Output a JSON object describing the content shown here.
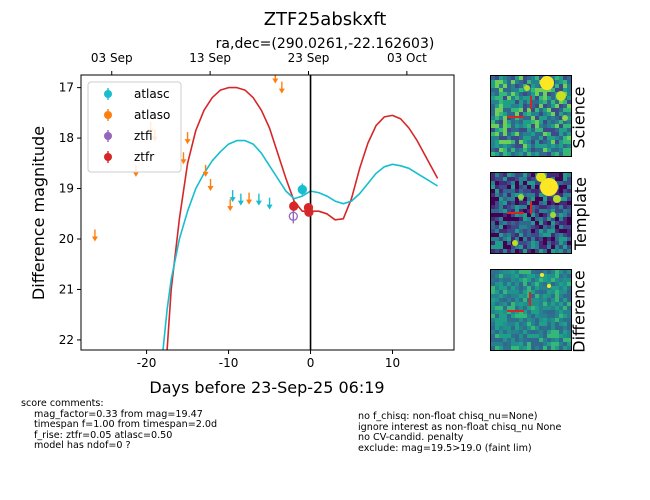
{
  "chart_data": {
    "type": "scatter",
    "title": "ZTF25abskxft",
    "subtitle": "ra,dec=(290.0261,-22.162603)",
    "xlabel": "Days before 23-Sep-25 06:19",
    "ylabel": "Difference magnitude",
    "xlim": [
      -28,
      17.5
    ],
    "ylim": [
      22.2,
      16.75
    ],
    "y_inverted": true,
    "x_ticks": [
      -20,
      -10,
      0,
      10
    ],
    "y_ticks": [
      17,
      18,
      19,
      20,
      21,
      22
    ],
    "top_axis_ticks": [
      {
        "x": -24.25,
        "label": "03 Sep"
      },
      {
        "x": -12.25,
        "label": "13 Sep"
      },
      {
        "x": -0.25,
        "label": "23 Sep"
      },
      {
        "x": 11.75,
        "label": "03 Oct"
      }
    ],
    "vline_x": 0,
    "legend_position": "upper-left",
    "legend": [
      {
        "name": "atlasc",
        "color": "#17becf"
      },
      {
        "name": "atlaso",
        "color": "#ff7f0e"
      },
      {
        "name": "ztfi",
        "color": "#9467bd"
      },
      {
        "name": "ztfr",
        "color": "#d62728"
      }
    ],
    "series": [
      {
        "name": "atlasc",
        "color": "#17becf",
        "kind": "upper_limit",
        "x": [
          -9.5,
          -8.5,
          -6.3,
          -5
        ],
        "y": [
          19.15,
          19.22,
          19.22,
          19.3
        ]
      },
      {
        "name": "atlasc",
        "color": "#17becf",
        "kind": "detection",
        "x": [
          -1.0
        ],
        "y": [
          19.02
        ],
        "yerr": [
          0.12
        ]
      },
      {
        "name": "atlaso",
        "color": "#ff7f0e",
        "kind": "upper_limit",
        "x": [
          -26.3,
          -21.3,
          -19.5,
          -19,
          -15.5,
          -15,
          -12.8,
          -12.2,
          -9.8,
          -7.5,
          -4.3,
          -3.5
        ],
        "y": [
          19.93,
          18.65,
          17.8,
          17.95,
          18.4,
          18.0,
          18.65,
          18.93,
          19.33,
          19.2,
          16.8,
          17.0
        ]
      },
      {
        "name": "ztfi",
        "color": "#9467bd",
        "kind": "detection",
        "open": true,
        "x": [
          -2.1
        ],
        "y": [
          19.55
        ],
        "yerr": [
          0.14
        ]
      },
      {
        "name": "ztfr",
        "color": "#d62728",
        "kind": "detection",
        "x": [
          -2.05,
          -0.25,
          -0.2
        ],
        "y": [
          19.35,
          19.38,
          19.47
        ],
        "yerr": [
          0.1,
          0.08,
          0.08
        ]
      }
    ],
    "model_curves": [
      {
        "name": "ztfr model",
        "color": "#d62728",
        "x": [
          -17.5,
          -17,
          -16,
          -15,
          -14,
          -13,
          -12,
          -11,
          -10,
          -9,
          -8,
          -7,
          -6,
          -5,
          -4,
          -3,
          -2,
          -1,
          0,
          1,
          2,
          3,
          4,
          5,
          6,
          7,
          8,
          9,
          10,
          11,
          12,
          13,
          14,
          15,
          15.5
        ],
        "y": [
          22.2,
          21.0,
          19.6,
          18.5,
          17.85,
          17.45,
          17.2,
          17.05,
          17.0,
          17.0,
          17.05,
          17.2,
          17.45,
          17.8,
          18.3,
          18.8,
          19.25,
          19.45,
          19.45,
          19.45,
          19.5,
          19.62,
          19.6,
          19.2,
          18.6,
          18.1,
          17.75,
          17.58,
          17.55,
          17.62,
          17.8,
          18.05,
          18.35,
          18.65,
          18.8
        ]
      },
      {
        "name": "atlasc model",
        "color": "#17becf",
        "x": [
          -18,
          -17.5,
          -17,
          -16,
          -15,
          -14,
          -13,
          -12,
          -11,
          -10,
          -9,
          -8,
          -7,
          -6,
          -5,
          -4,
          -3,
          -2,
          -1,
          0,
          1,
          2,
          3,
          4,
          5,
          6,
          7,
          8,
          9,
          10,
          11,
          12,
          13,
          14,
          15.5
        ],
        "y": [
          22.2,
          21.4,
          20.8,
          20.0,
          19.45,
          19.0,
          18.7,
          18.45,
          18.27,
          18.12,
          18.05,
          18.05,
          18.12,
          18.3,
          18.55,
          18.8,
          19.05,
          19.2,
          19.15,
          19.05,
          19.08,
          19.15,
          19.25,
          19.3,
          19.25,
          19.1,
          18.9,
          18.7,
          18.57,
          18.52,
          18.55,
          18.6,
          18.7,
          18.8,
          18.95
        ]
      }
    ]
  },
  "thumbnails": [
    {
      "label": "Science"
    },
    {
      "label": "Template"
    },
    {
      "label": "Difference"
    }
  ],
  "comments": {
    "header": "score comments:",
    "left": [
      "mag_factor=0.33 from mag=19.47",
      "timespan f=1.00 from timespan=2.0d",
      "f_rise: ztfr=0.05 atlasc=0.50",
      "model has ndof=0 ?"
    ],
    "right": [
      "no f_chisq: non-float chisq_nu=None)",
      "ignore interest as non-float chisq_nu None",
      "no CV-candid. penalty",
      "exclude: mag=19.5>19.0 (faint lim)"
    ]
  }
}
